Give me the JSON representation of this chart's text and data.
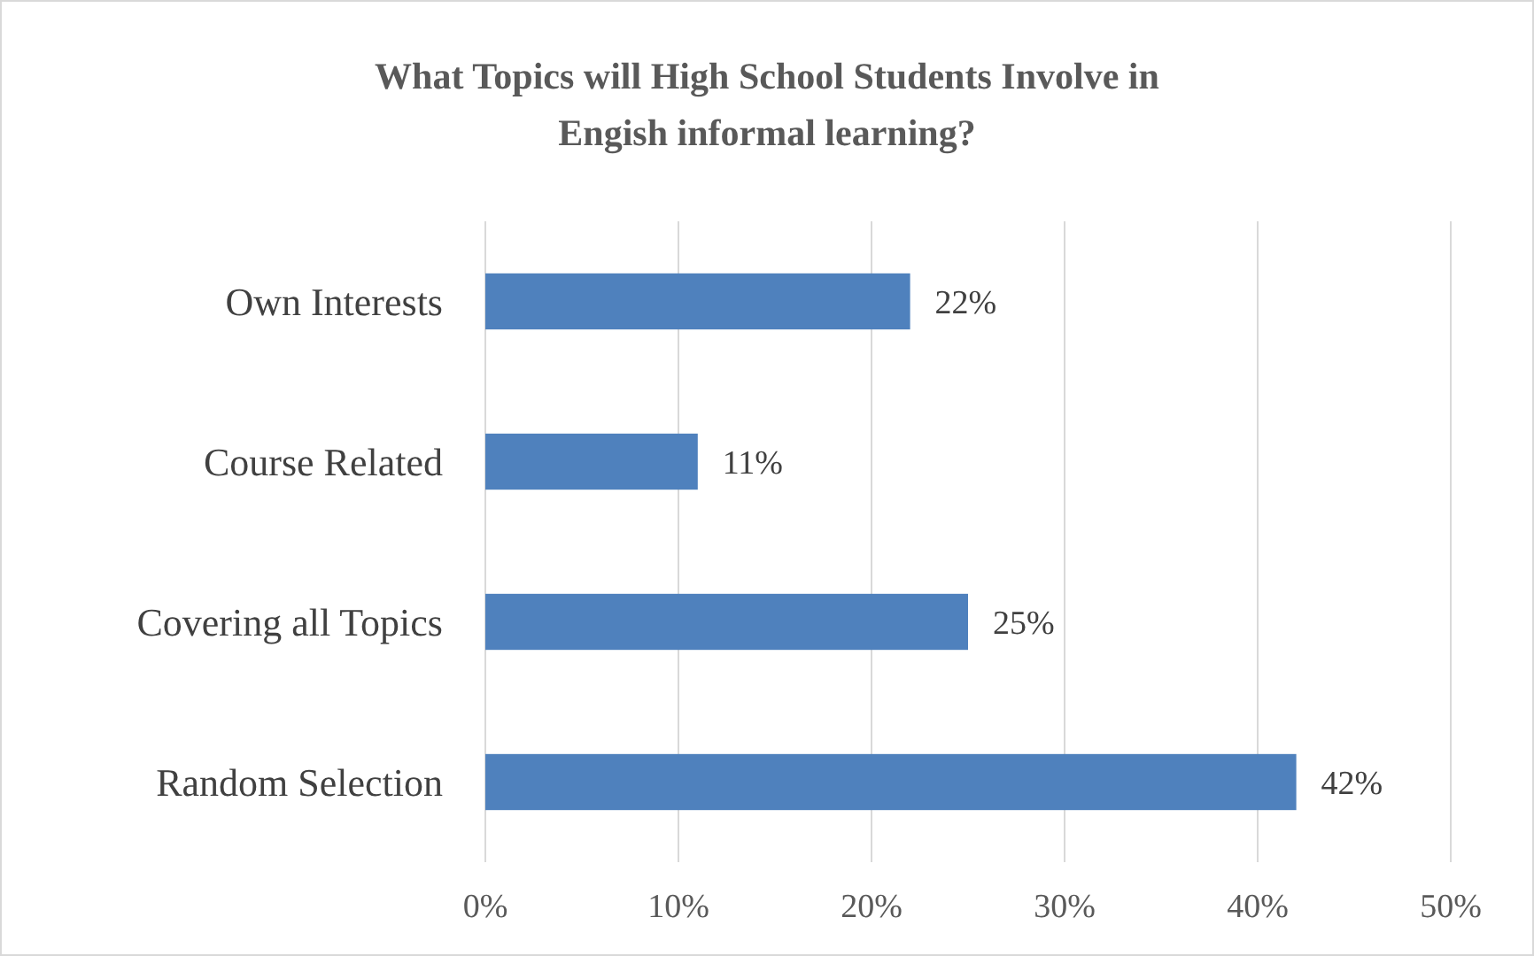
{
  "chart_data": {
    "type": "bar",
    "orientation": "horizontal",
    "title": "What Topics will High School Students Involve in Engish informal learning?",
    "categories": [
      "Own Interests",
      "Course Related",
      "Covering all Topics",
      "Random Selection"
    ],
    "values": [
      22,
      11,
      25,
      42
    ],
    "value_labels": [
      "22%",
      "11%",
      "25%",
      "42%"
    ],
    "color": "#4f81bd",
    "xlim": [
      0,
      50
    ],
    "xticks": [
      {
        "value": 0,
        "label": "0%"
      },
      {
        "value": 10,
        "label": "10%"
      },
      {
        "value": 20,
        "label": "20%"
      },
      {
        "value": 30,
        "label": "30%"
      },
      {
        "value": 40,
        "label": "40%"
      },
      {
        "value": 50,
        "label": "50%"
      }
    ],
    "grid": "x"
  }
}
